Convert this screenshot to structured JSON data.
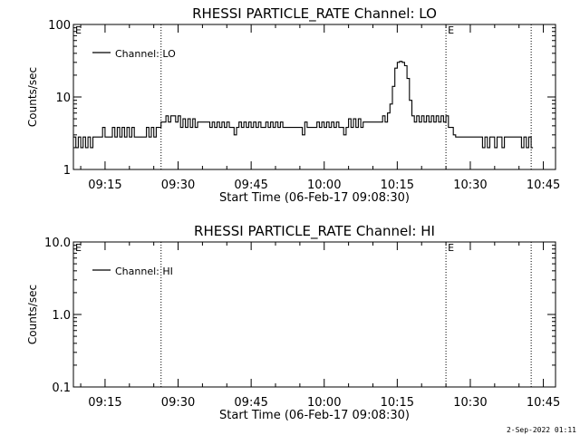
{
  "colors": {
    "background": "#ffffff",
    "foreground": "#000000"
  },
  "footer": {
    "timestamp": "2-Sep-2022 01:11"
  },
  "chart_data": [
    {
      "type": "line",
      "title": "RHESSI PARTICLE_RATE Channel: LO",
      "xlabel": "Start Time (06-Feb-17 09:08:30)",
      "ylabel": "Counts/sec",
      "yscale": "log",
      "xlim": [
        "09:08:30",
        "10:47:30"
      ],
      "ylim": [
        1,
        100
      ],
      "xticks": [
        "09:15",
        "09:30",
        "09:45",
        "10:00",
        "10:15",
        "10:30",
        "10:45"
      ],
      "yticks": [
        "1",
        "10",
        "100"
      ],
      "legend": {
        "label": "Channel: LO",
        "placement": "top-left"
      },
      "vertical_markers": [
        {
          "time": "09:08:30",
          "label": "E",
          "style": "dotted"
        },
        {
          "time": "09:26:30",
          "label": "",
          "style": "dotted"
        },
        {
          "time": "10:25:00",
          "label": "E",
          "style": "dotted"
        },
        {
          "time": "10:42:30",
          "label": "",
          "style": "dotted"
        }
      ],
      "series": [
        {
          "name": "Channel: LO",
          "x": [
            "09:08:30",
            "09:09:00",
            "09:09:30",
            "09:10:00",
            "09:10:30",
            "09:11:00",
            "09:11:30",
            "09:12:00",
            "09:12:30",
            "09:13:00",
            "09:13:30",
            "09:14:00",
            "09:14:30",
            "09:15:00",
            "09:16:00",
            "09:16:30",
            "09:17:00",
            "09:17:30",
            "09:18:00",
            "09:18:30",
            "09:19:00",
            "09:19:30",
            "09:20:00",
            "09:20:30",
            "09:21:00",
            "09:21:30",
            "09:22:00",
            "09:22:30",
            "09:23:00",
            "09:23:30",
            "09:24:00",
            "09:24:30",
            "09:25:00",
            "09:25:30",
            "09:26:00",
            "09:26:30",
            "09:27:00",
            "09:27:30",
            "09:28:00",
            "09:28:30",
            "09:29:00",
            "09:29:30",
            "09:30:00",
            "09:30:30",
            "09:31:00",
            "09:31:30",
            "09:32:00",
            "09:32:30",
            "09:33:00",
            "09:33:30",
            "09:34:00",
            "09:35:00",
            "09:36:00",
            "09:36:30",
            "09:37:00",
            "09:37:30",
            "09:38:00",
            "09:38:30",
            "09:39:00",
            "09:39:30",
            "09:40:00",
            "09:40:30",
            "09:41:00",
            "09:41:30",
            "09:42:00",
            "09:42:30",
            "09:43:00",
            "09:43:30",
            "09:44:00",
            "09:44:30",
            "09:45:00",
            "09:45:30",
            "09:46:00",
            "09:46:30",
            "09:47:00",
            "09:47:30",
            "09:48:00",
            "09:48:30",
            "09:49:00",
            "09:49:30",
            "09:50:00",
            "09:50:30",
            "09:51:00",
            "09:51:30",
            "09:52:00",
            "09:53:00",
            "09:54:00",
            "09:55:00",
            "09:55:30",
            "09:56:00",
            "09:56:30",
            "09:57:00",
            "09:58:00",
            "09:58:30",
            "09:59:00",
            "09:59:30",
            "10:00:00",
            "10:00:30",
            "10:01:00",
            "10:01:30",
            "10:02:00",
            "10:02:30",
            "10:03:00",
            "10:03:30",
            "10:04:00",
            "10:04:30",
            "10:05:00",
            "10:05:30",
            "10:06:00",
            "10:06:30",
            "10:07:00",
            "10:07:30",
            "10:08:00",
            "10:09:00",
            "10:10:00",
            "10:11:00",
            "10:11:30",
            "10:12:00",
            "10:12:30",
            "10:13:00",
            "10:13:30",
            "10:14:00",
            "10:14:30",
            "10:15:00",
            "10:15:30",
            "10:16:00",
            "10:16:30",
            "10:17:00",
            "10:17:30",
            "10:18:00",
            "10:18:30",
            "10:19:00",
            "10:19:30",
            "10:20:00",
            "10:20:30",
            "10:21:00",
            "10:21:30",
            "10:22:00",
            "10:22:30",
            "10:23:00",
            "10:23:30",
            "10:24:00",
            "10:24:30",
            "10:25:00",
            "10:25:30",
            "10:26:00",
            "10:26:30",
            "10:27:00",
            "10:28:00",
            "10:29:00",
            "10:30:00",
            "10:31:00",
            "10:31:30",
            "10:32:00",
            "10:32:30",
            "10:33:00",
            "10:33:30",
            "10:34:00",
            "10:34:30",
            "10:35:00",
            "10:35:30",
            "10:36:00",
            "10:36:30",
            "10:37:00",
            "10:37:30",
            "10:38:00",
            "10:38:30",
            "10:39:00",
            "10:39:30",
            "10:40:00",
            "10:40:30",
            "10:41:00",
            "10:41:30",
            "10:42:00",
            "10:42:30"
          ],
          "y": [
            2.8,
            2.0,
            2.8,
            2.0,
            2.8,
            2.0,
            2.8,
            2.0,
            2.8,
            2.8,
            2.8,
            2.8,
            3.8,
            2.8,
            2.8,
            3.8,
            2.8,
            3.8,
            2.8,
            3.8,
            2.8,
            3.8,
            2.8,
            3.8,
            2.8,
            2.8,
            2.8,
            2.8,
            2.8,
            3.8,
            2.8,
            3.8,
            2.8,
            3.8,
            3.8,
            4.5,
            4.5,
            5.5,
            4.5,
            5.5,
            5.5,
            4.5,
            5.5,
            3.8,
            5.0,
            3.8,
            5.0,
            3.8,
            5.0,
            3.8,
            4.5,
            4.5,
            4.5,
            3.8,
            4.5,
            3.8,
            4.5,
            3.8,
            4.5,
            3.8,
            4.5,
            3.8,
            3.8,
            3.0,
            3.8,
            4.5,
            3.8,
            4.5,
            3.8,
            4.5,
            3.8,
            4.5,
            3.8,
            4.5,
            3.8,
            3.8,
            4.5,
            3.8,
            4.5,
            3.8,
            4.5,
            3.8,
            4.5,
            3.8,
            3.8,
            3.8,
            3.8,
            3.8,
            3.0,
            4.5,
            3.8,
            3.8,
            3.8,
            4.5,
            3.8,
            4.5,
            3.8,
            4.5,
            3.8,
            4.5,
            3.8,
            4.5,
            3.8,
            3.8,
            3.0,
            3.8,
            5.0,
            3.8,
            5.0,
            3.8,
            5.0,
            3.8,
            4.5,
            4.5,
            4.5,
            4.5,
            4.5,
            5.5,
            4.5,
            6.0,
            8.0,
            14,
            25,
            30,
            31,
            30,
            27,
            18,
            9,
            5.5,
            4.5,
            5.5,
            4.5,
            5.5,
            4.5,
            5.5,
            4.5,
            5.5,
            4.5,
            5.5,
            4.5,
            5.5,
            4.5,
            5.5,
            3.8,
            3.8,
            3.0,
            2.8,
            2.8,
            2.8,
            2.8,
            2.8,
            2.8,
            2.8,
            2.0,
            2.8,
            2.0,
            2.8,
            2.8,
            2.0,
            2.8,
            2.8,
            2.0,
            2.8,
            2.8,
            2.8,
            2.8,
            2.8,
            2.8,
            2.8,
            2.0,
            2.8,
            2.0,
            2.8,
            2.0
          ]
        }
      ]
    },
    {
      "type": "line",
      "title": "RHESSI PARTICLE_RATE Channel: HI",
      "xlabel": "Start Time (06-Feb-17 09:08:30)",
      "ylabel": "Counts/sec",
      "yscale": "log",
      "xlim": [
        "09:08:30",
        "10:47:30"
      ],
      "ylim": [
        0.1,
        10
      ],
      "xticks": [
        "09:15",
        "09:30",
        "09:45",
        "10:00",
        "10:15",
        "10:30",
        "10:45"
      ],
      "yticks": [
        "0.1",
        "1.0",
        "10.0"
      ],
      "legend": {
        "label": "Channel: HI",
        "placement": "top-left"
      },
      "vertical_markers": [
        {
          "time": "09:08:30",
          "label": "E",
          "style": "dotted"
        },
        {
          "time": "09:26:30",
          "label": "",
          "style": "dotted"
        },
        {
          "time": "10:25:00",
          "label": "E",
          "style": "dotted"
        },
        {
          "time": "10:42:30",
          "label": "",
          "style": "dotted"
        }
      ],
      "series": [
        {
          "name": "Channel: HI",
          "x": [],
          "y": []
        }
      ]
    }
  ]
}
